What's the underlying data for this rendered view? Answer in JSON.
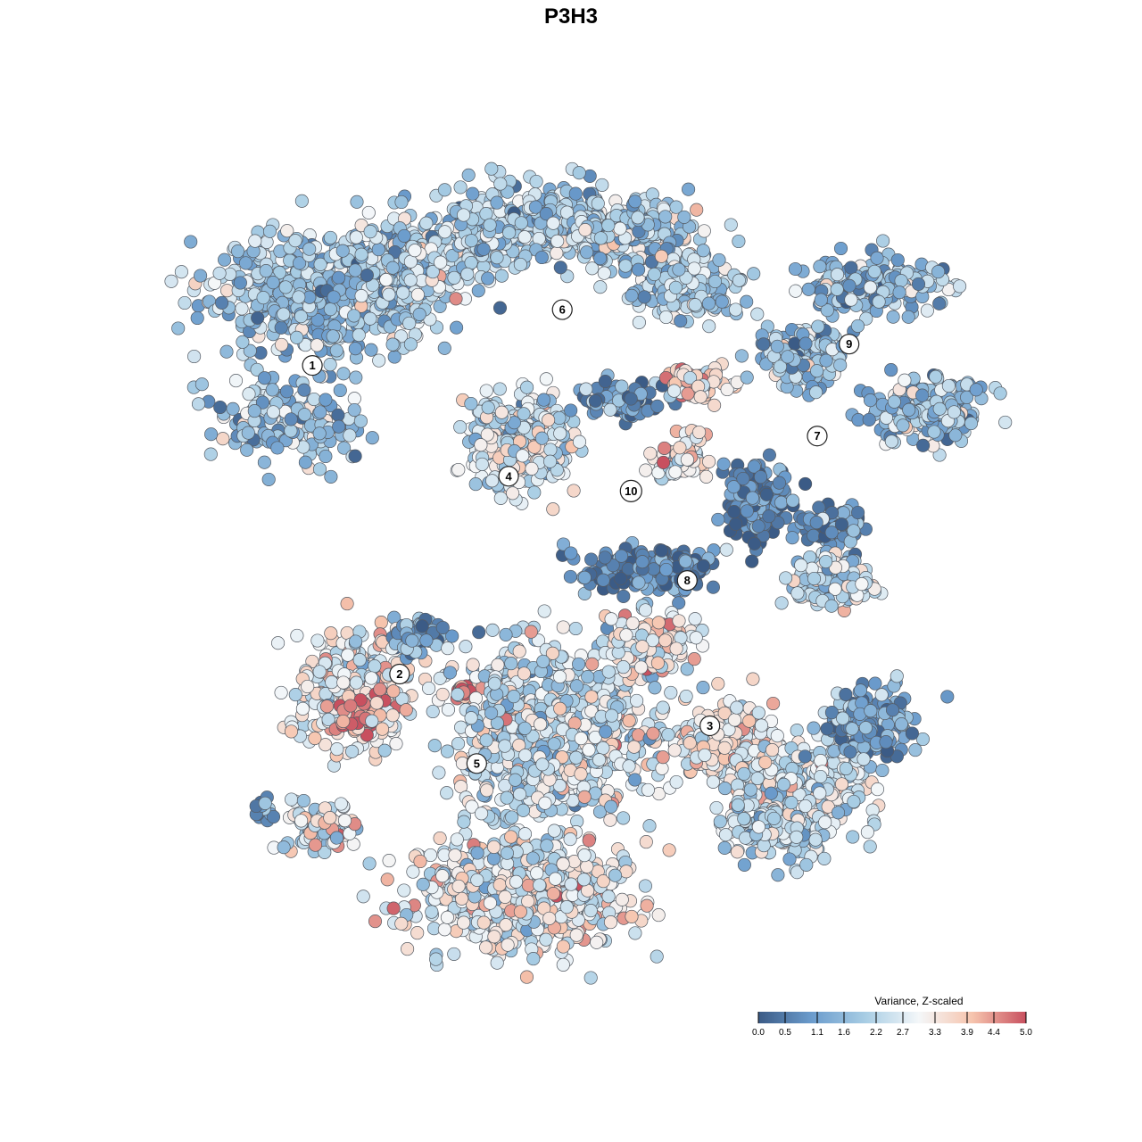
{
  "chart_data": {
    "type": "scatter",
    "title": "P3H3",
    "xlabel": "",
    "ylabel": "",
    "grid": false,
    "x_range": [
      0,
      100
    ],
    "y_range": [
      0,
      100
    ],
    "color_scale": {
      "title": "Variance, Z-scaled",
      "min": 0.0,
      "max": 5.0,
      "ticks": [
        0.0,
        0.5,
        1.1,
        1.6,
        2.2,
        2.7,
        3.3,
        3.9,
        4.4,
        5.0
      ],
      "tick_labels": [
        "0.0",
        "0.5",
        "1.1",
        "1.6",
        "2.2",
        "2.7",
        "3.3",
        "3.9",
        "4.4",
        "5.0"
      ],
      "colors": [
        "#3b5b86",
        "#6b9ccd",
        "#a8cde4",
        "#f4f7f9",
        "#f6c4ad",
        "#c8505f"
      ],
      "placement": "bottom-right"
    },
    "clusters": [
      {
        "label": "1",
        "x": 16.5,
        "y": 74.5,
        "mean": 1.8
      },
      {
        "label": "2",
        "x": 26.9,
        "y": 36.9,
        "mean": 2.7
      },
      {
        "label": "3",
        "x": 63.9,
        "y": 30.6,
        "mean": 2.8
      },
      {
        "label": "4",
        "x": 39.9,
        "y": 61.0,
        "mean": 2.6
      },
      {
        "label": "5",
        "x": 36.1,
        "y": 26.0,
        "mean": 3.1
      },
      {
        "label": "6",
        "x": 46.3,
        "y": 81.3,
        "mean": 2.2
      },
      {
        "label": "7",
        "x": 76.7,
        "y": 65.9,
        "mean": 1.8
      },
      {
        "label": "8",
        "x": 61.2,
        "y": 48.3,
        "mean": 0.8
      },
      {
        "label": "9",
        "x": 80.5,
        "y": 77.1,
        "mean": 1.8
      },
      {
        "label": "10",
        "x": 54.5,
        "y": 59.2,
        "mean": 3.2
      }
    ]
  }
}
